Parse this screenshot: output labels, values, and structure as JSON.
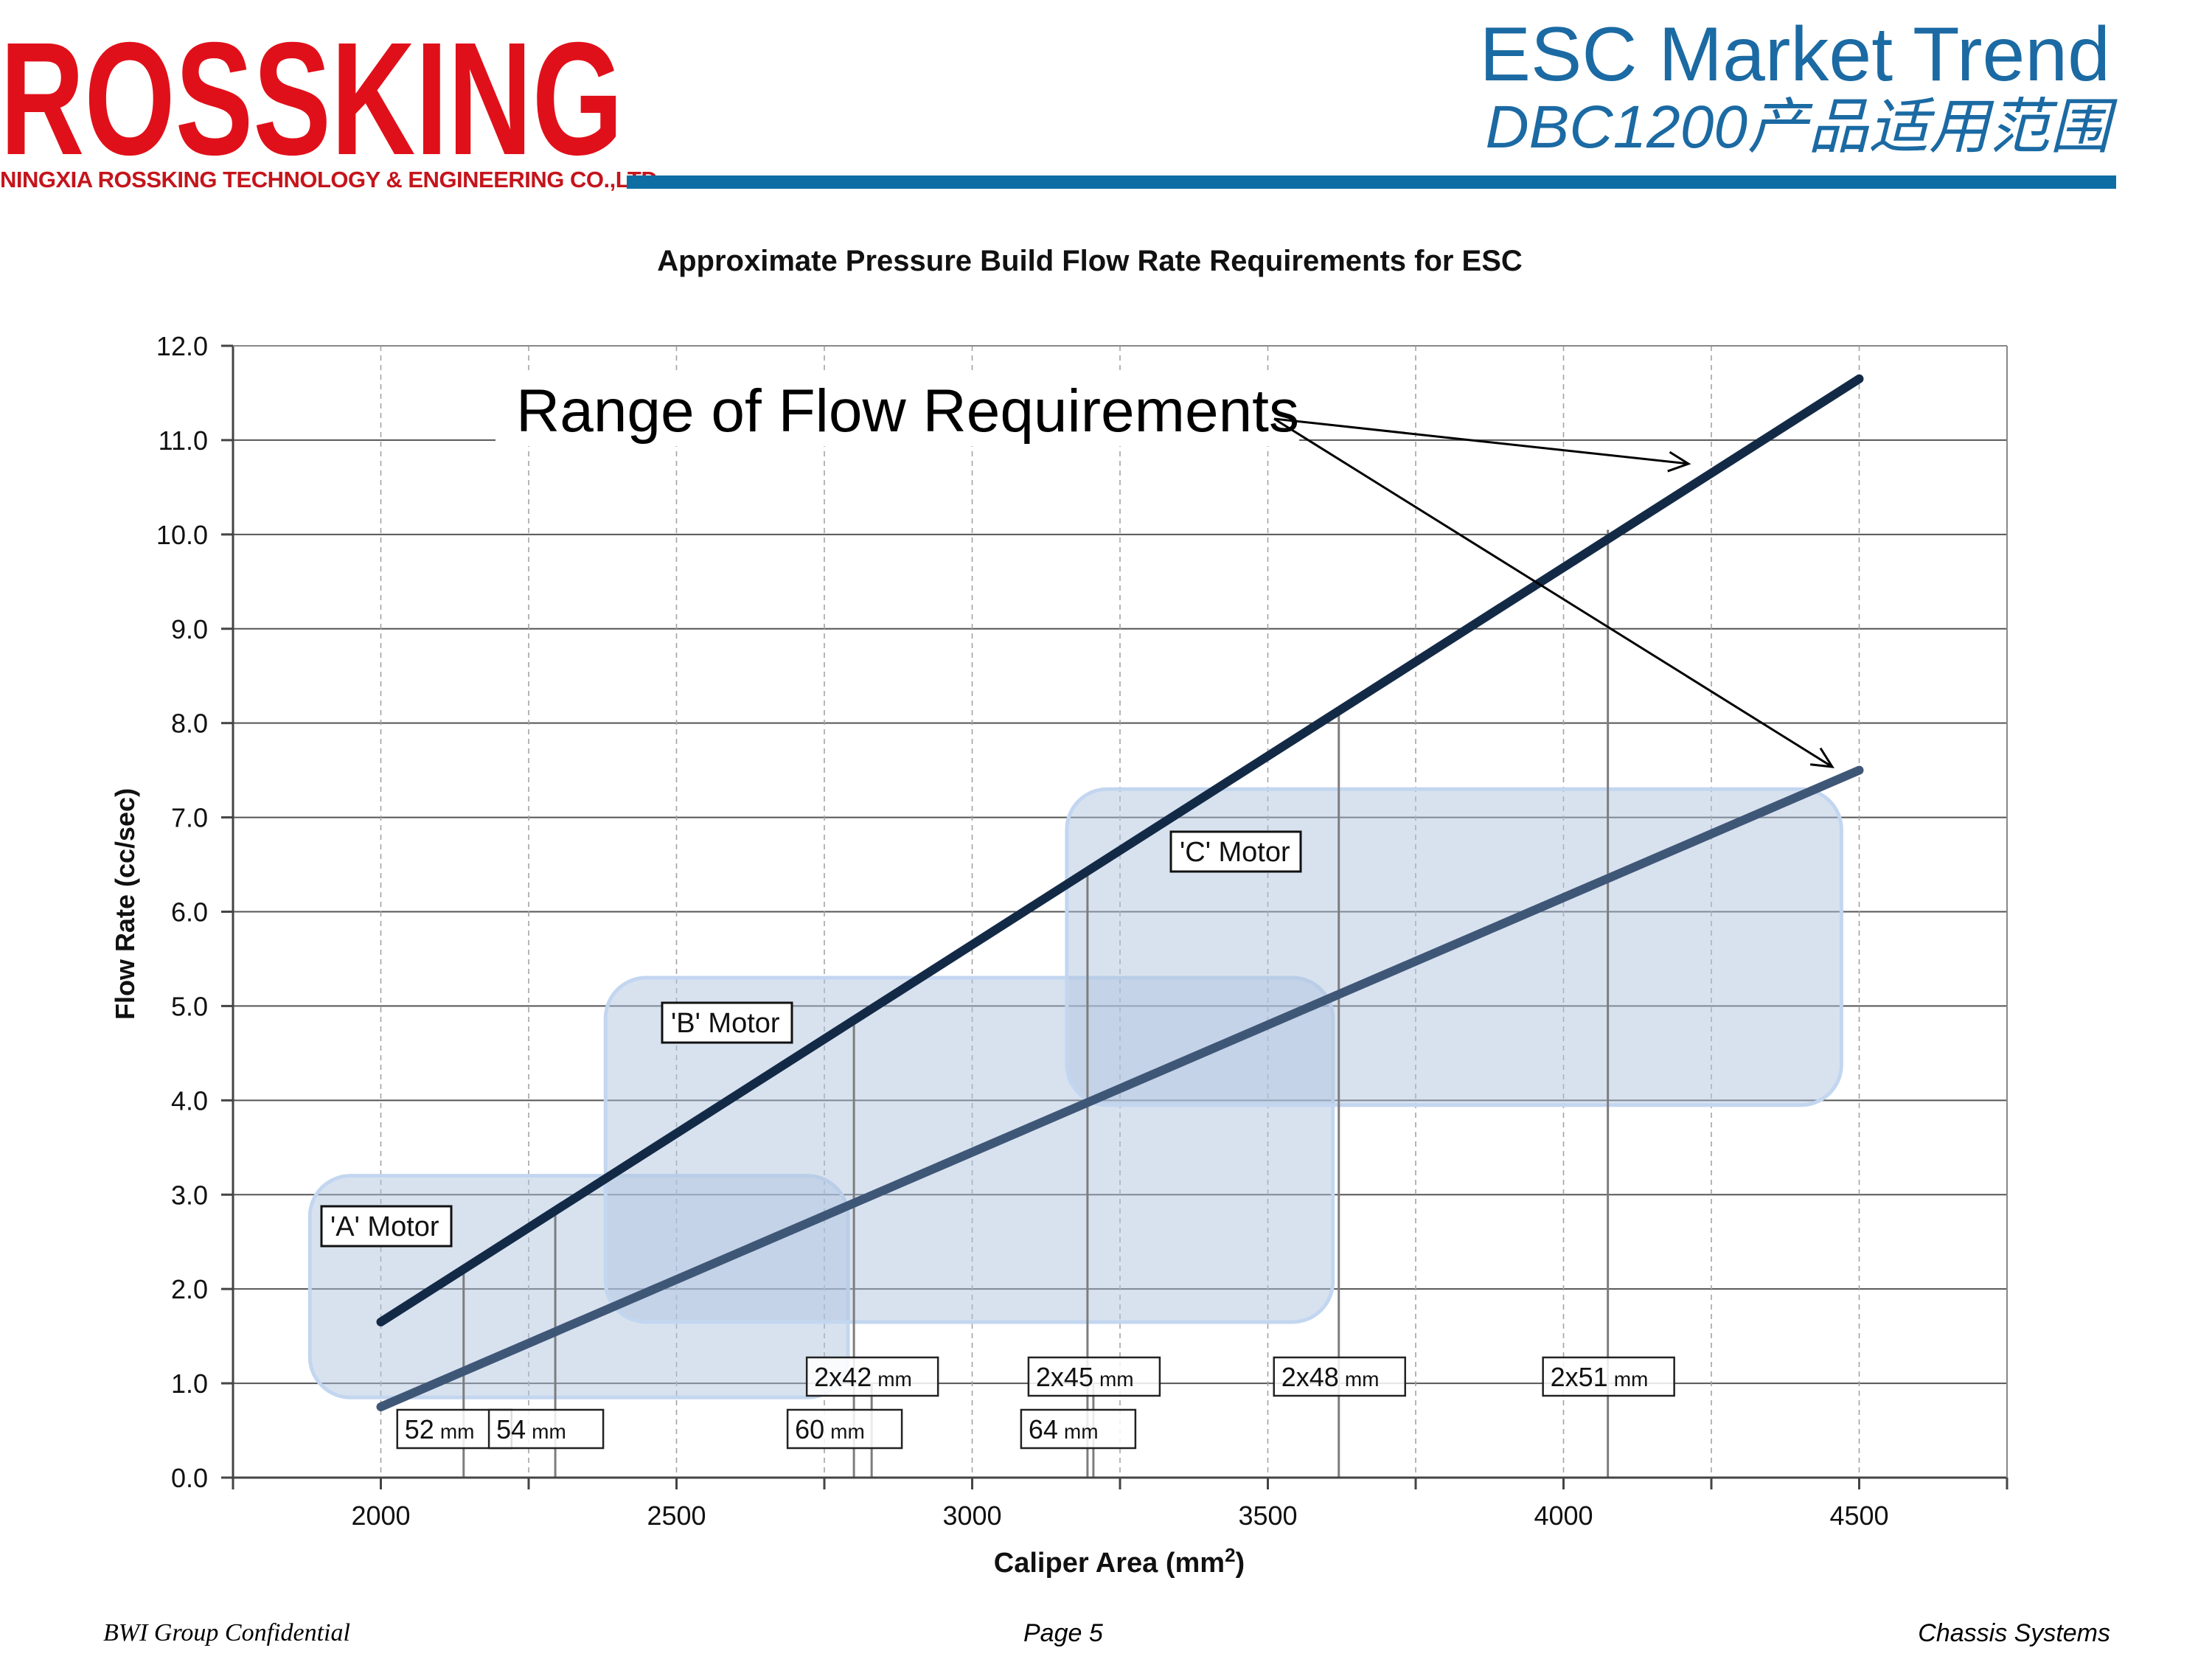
{
  "header": {
    "logo_text": "ROSSKING",
    "company": "NINGXIA ROSSKING TECHNOLOGY & ENGINEERING CO.,LTD",
    "title": "ESC Market Trend",
    "subtitle": "DBC1200产品适用范围",
    "brand_color": "#e0101a",
    "accent_color": "#1b6aa3"
  },
  "chart_data": {
    "type": "line",
    "title": "Approximate Pressure Build Flow Rate Requirements for ESC",
    "xlabel": "Caliper  Area  (mm",
    "xlabel_sup": "2",
    "xlabel_tail": ")",
    "ylabel": "Flow Rate  (cc/sec)",
    "xlim": [
      1750,
      4750
    ],
    "ylim": [
      0,
      12
    ],
    "xticks": [
      2000,
      2500,
      3000,
      3500,
      4000,
      4500
    ],
    "yticks": [
      "0.0",
      "1.0",
      "2.0",
      "3.0",
      "4.0",
      "5.0",
      "6.0",
      "7.0",
      "8.0",
      "9.0",
      "10.0",
      "11.0",
      "12.0"
    ],
    "series": [
      {
        "color": "#132a47",
        "x": [
          2000,
          4500
        ],
        "y": [
          1.65,
          11.65
        ]
      },
      {
        "color": "#3f5777",
        "x": [
          2000,
          4500
        ],
        "y": [
          0.75,
          7.5
        ]
      }
    ],
    "annotation": "Range of Flow Requirements",
    "motor_regions": [
      {
        "label": "'A' Motor",
        "x": [
          1880,
          2790
        ],
        "y": [
          0.85,
          3.2
        ]
      },
      {
        "label": "'B' Motor",
        "x": [
          2380,
          3610
        ],
        "y": [
          1.65,
          5.3
        ]
      },
      {
        "label": "'C' Motor",
        "x": [
          3160,
          4470
        ],
        "y": [
          3.95,
          7.3
        ]
      }
    ],
    "caliper_refs": [
      {
        "x": 2140,
        "ytop": 2.25,
        "num": "52",
        "unit": "mm",
        "row": "low"
      },
      {
        "x": 2295,
        "ytop": 2.85,
        "num": "54",
        "unit": "mm",
        "row": "low"
      },
      {
        "x": 2800,
        "ytop": 4.8,
        "num": "60",
        "unit": "mm",
        "row": "low"
      },
      {
        "x": 2830,
        "ytop": 1.0,
        "num": "2x42",
        "unit": "mm",
        "row": "high"
      },
      {
        "x": 3195,
        "ytop": 6.4,
        "num": "64",
        "unit": "mm",
        "row": "low"
      },
      {
        "x": 3205,
        "ytop": 1.0,
        "num": "2x45",
        "unit": "mm",
        "row": "high"
      },
      {
        "x": 3620,
        "ytop": 8.1,
        "num": "2x48",
        "unit": "mm",
        "row": "high"
      },
      {
        "x": 4075,
        "ytop": 10.05,
        "num": "2x51",
        "unit": "mm",
        "row": "high"
      }
    ]
  },
  "footer": {
    "left": "BWI Group Confidential",
    "center": "Page 5",
    "right": "Chassis Systems"
  }
}
